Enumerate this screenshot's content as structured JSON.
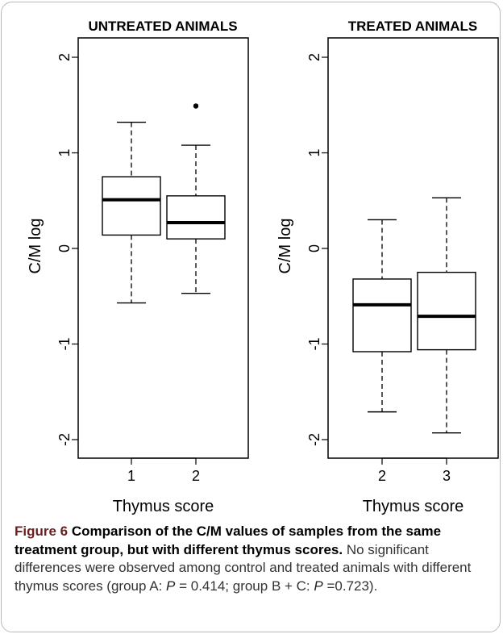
{
  "chart_data": [
    {
      "type": "boxplot",
      "title": "UNTREATED ANIMALS",
      "xlabel": "Thymus score",
      "ylabel": "C/M log",
      "ylim": [
        -2,
        2
      ],
      "yticks": [
        "-2",
        "-1",
        "0",
        "1",
        "2"
      ],
      "categories": [
        "1",
        "2"
      ],
      "boxes": [
        {
          "label": "1",
          "whisker_low": -0.57,
          "q1": 0.14,
          "median": 0.51,
          "q3": 0.75,
          "whisker_high": 1.32,
          "outliers": []
        },
        {
          "label": "2",
          "whisker_low": -0.47,
          "q1": 0.1,
          "median": 0.27,
          "q3": 0.55,
          "whisker_high": 1.08,
          "outliers": [
            1.49
          ]
        }
      ]
    },
    {
      "type": "boxplot",
      "title": "TREATED ANIMALS",
      "xlabel": "Thymus score",
      "ylabel": "C/M log",
      "ylim": [
        -2,
        2
      ],
      "yticks": [
        "-2",
        "-1",
        "0",
        "1",
        "2"
      ],
      "categories": [
        "2",
        "3"
      ],
      "boxes": [
        {
          "label": "2",
          "whisker_low": -1.71,
          "q1": -1.08,
          "median": -0.59,
          "q3": -0.32,
          "whisker_high": 0.3,
          "outliers": []
        },
        {
          "label": "3",
          "whisker_low": -1.93,
          "q1": -1.06,
          "median": -0.71,
          "q3": -0.25,
          "whisker_high": 0.53,
          "outliers": []
        }
      ]
    }
  ],
  "caption": {
    "figure_label": "Figure 6",
    "title": "Comparison of the C/M values of samples from the same treatment group, but with different thymus scores.",
    "body_before_p1": "No significant differences were observed among control and treated animals with different thymus scores (group A: ",
    "p1_symbol": "P",
    "p1_value": " = 0.414; group B + C: ",
    "p2_symbol": "P",
    "p2_value": " =0.723)."
  }
}
